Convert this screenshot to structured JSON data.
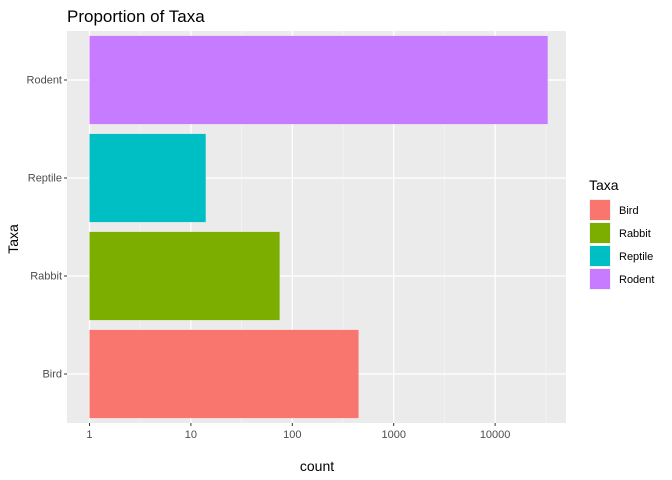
{
  "chart_data": {
    "type": "bar",
    "orientation": "horizontal",
    "title": "Proportion of Taxa",
    "xlabel": "count",
    "ylabel": "Taxa",
    "x_scale": "log10",
    "xlim": [
      0.6,
      50000
    ],
    "x_ticks": [
      1,
      10,
      100,
      1000,
      10000
    ],
    "x_tick_labels": [
      "1",
      "10",
      "100",
      "1000",
      "10000"
    ],
    "categories": [
      "Bird",
      "Rabbit",
      "Reptile",
      "Rodent"
    ],
    "values": [
      450,
      75,
      14,
      33000
    ],
    "colors": [
      "#F8766D",
      "#7CAE00",
      "#00BFC4",
      "#C77CFF"
    ],
    "grid": true,
    "legend": {
      "title": "Taxa",
      "position": "right",
      "entries": [
        "Bird",
        "Rabbit",
        "Reptile",
        "Rodent"
      ]
    }
  }
}
